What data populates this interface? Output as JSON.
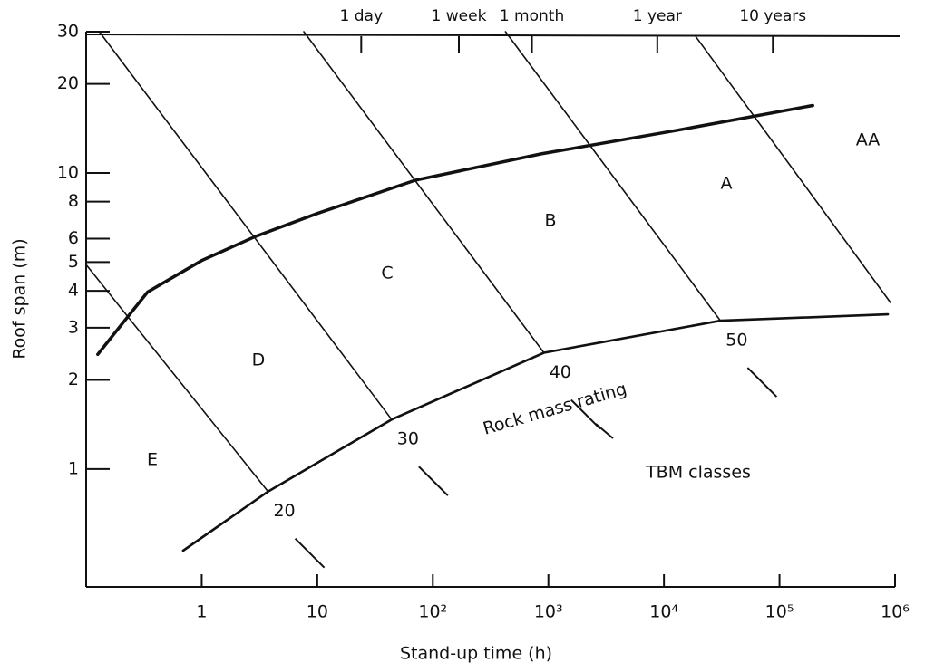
{
  "chart_data": {
    "type": "line",
    "xlabel": "Stand-up time (h)",
    "ylabel": "Roof span (m)",
    "xscale": "log",
    "yscale": "log",
    "xlim": [
      0.1,
      1000000
    ],
    "ylim": [
      0.4,
      30
    ],
    "xticks": [
      1,
      10,
      {
        "value": 100,
        "label": "10²"
      },
      {
        "value": 1000,
        "label": "10³"
      },
      {
        "value": 10000,
        "label": "10⁴"
      },
      {
        "value": 100000,
        "label": "10⁵"
      },
      {
        "value": 1000000,
        "label": "10⁶"
      }
    ],
    "yticks": [
      1,
      2,
      3,
      4,
      5,
      6,
      8,
      10,
      20,
      30
    ],
    "x2ticks": [
      {
        "value": 24,
        "label": "1 day"
      },
      {
        "value": 168,
        "label": "1 week"
      },
      {
        "value": 720,
        "label": "1 month"
      },
      {
        "value": 8760,
        "label": "1 year"
      },
      {
        "value": 87600,
        "label": "10 years"
      }
    ],
    "series": [
      {
        "name": "20",
        "color": "#111",
        "width": 1.6,
        "x": [
          0.1,
          3.75
        ],
        "values": [
          4.9,
          0.84
        ]
      },
      {
        "name": "30",
        "color": "#111",
        "width": 1.6,
        "x": [
          0.13,
          44
        ],
        "values": [
          30,
          1.47
        ]
      },
      {
        "name": "40",
        "color": "#111",
        "width": 1.6,
        "x": [
          7.65,
          915
        ],
        "values": [
          30,
          2.47
        ]
      },
      {
        "name": "50",
        "color": "#111",
        "width": 1.6,
        "x": [
          425,
          30800
        ],
        "values": [
          30,
          3.17
        ]
      },
      {
        "color": "#111",
        "width": 1.6,
        "x": [
          18700,
          914000
        ],
        "values": [
          29,
          3.65
        ]
      },
      {
        "color": "#111",
        "width": 3.5,
        "x": [
          0.126,
          0.34,
          1,
          2.9,
          10,
          71,
          867,
          12600,
          194000
        ],
        "values": [
          2.44,
          3.96,
          5.06,
          6.1,
          7.3,
          9.46,
          11.6,
          13.9,
          16.9
        ]
      },
      {
        "color": "#111",
        "width": 2.6,
        "x": [
          0.69,
          3.75,
          44,
          915,
          30800,
          867000
        ],
        "values": [
          0.53,
          0.84,
          1.47,
          2.47,
          3.17,
          3.33
        ]
      }
    ],
    "annotations": [
      "E",
      "D",
      "C",
      "B",
      "A",
      "AA",
      "Rock mass rating",
      "TBM classes"
    ]
  }
}
